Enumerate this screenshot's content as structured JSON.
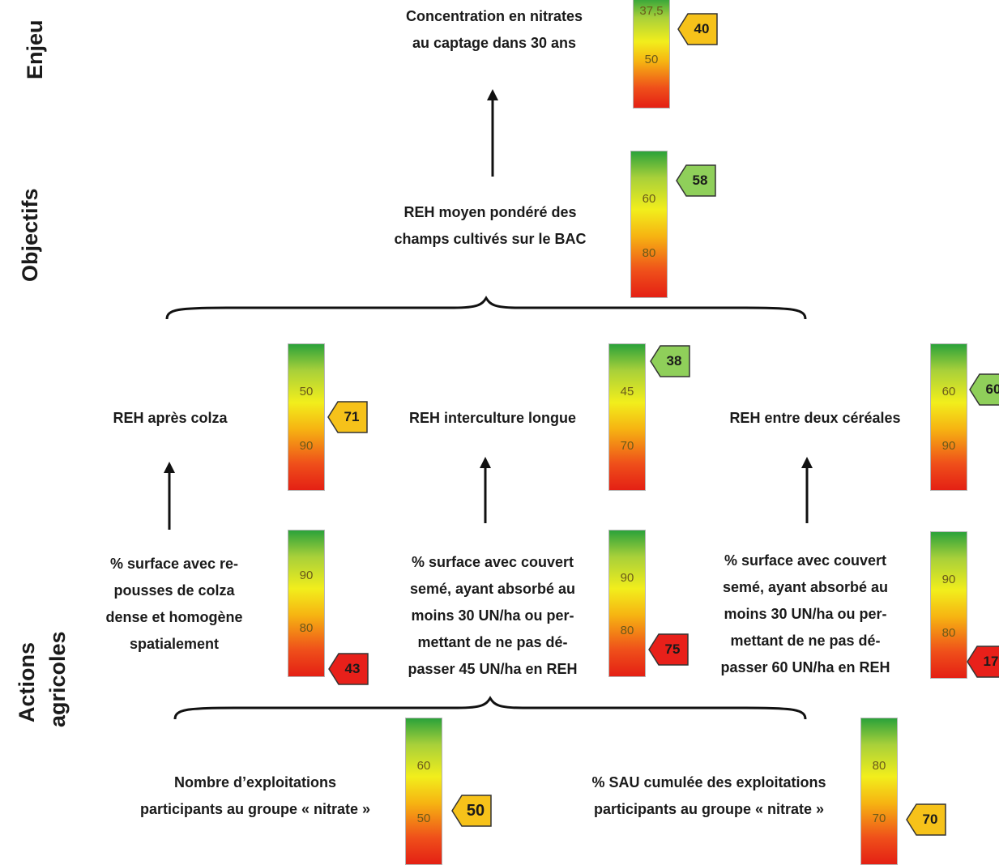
{
  "side_labels": {
    "enjeu": "Enjeu",
    "objectifs": "Objectifs",
    "actions_line1": "Actions",
    "actions_line2": "agricoles"
  },
  "enjeu": {
    "text": "Concentration en nitrates\nau captage dans 30 ans",
    "ticks": [
      "37,5",
      "50"
    ],
    "marker": "40",
    "marker_color": "#f6c21a"
  },
  "objectif": {
    "text": "REH moyen pondéré des\nchamps cultivés sur le BAC",
    "ticks": [
      "60",
      "80"
    ],
    "marker": "58",
    "marker_color": "#8fcf5a"
  },
  "reh": [
    {
      "text": "REH après colza",
      "ticks": [
        "50",
        "90"
      ],
      "marker": "71",
      "marker_color": "#f6c21a"
    },
    {
      "text": "REH interculture longue",
      "ticks": [
        "45",
        "70"
      ],
      "marker": "38",
      "marker_color": "#8fcf5a"
    },
    {
      "text": "REH entre deux céréales",
      "ticks": [
        "60",
        "90"
      ],
      "marker": "60",
      "marker_color": "#8fcf5a"
    }
  ],
  "actions": [
    {
      "text": "% surface avec re-\npousses de colza\ndense et homogène\nspatialement",
      "ticks": [
        "90",
        "80"
      ],
      "marker": "43",
      "marker_color": "#e8201a"
    },
    {
      "text": "% surface avec couvert\nsemé, ayant absorbé au\nmoins 30 UN/ha ou per-\nmettant de ne pas dé-\npasser 45 UN/ha en REH",
      "ticks": [
        "90",
        "80"
      ],
      "marker": "75",
      "marker_color": "#e8201a"
    },
    {
      "text": "% surface avec couvert\nsemé, ayant absorbé au\nmoins 30 UN/ha ou per-\nmettant de ne pas dé-\npasser 60 UN/ha en REH",
      "ticks": [
        "90",
        "80"
      ],
      "marker": "17",
      "marker_color": "#e8201a"
    }
  ],
  "groupe": [
    {
      "text": "Nombre d’exploitations\nparticipants au groupe « nitrate »",
      "ticks": [
        "60",
        "50"
      ],
      "marker": "50",
      "marker_color": "#f6c21a"
    },
    {
      "text": "% SAU cumulée des exploitations\nparticipants au groupe « nitrate »",
      "ticks": [
        "80",
        "70"
      ],
      "marker": "70",
      "marker_color": "#f6c21a"
    }
  ]
}
